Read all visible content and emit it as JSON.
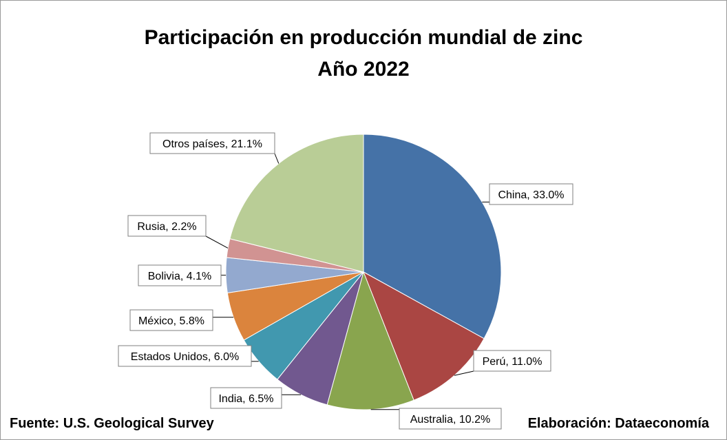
{
  "header": {
    "title_line1": "Participación en producción mundial de zinc",
    "title_line2": "Año 2022"
  },
  "footer": {
    "source": "Fuente: U.S. Geological Survey",
    "credit": "Elaboración: Dataeconomía"
  },
  "chart_data": {
    "type": "pie",
    "title": "Participación en producción mundial de zinc Año 2022",
    "unit": "%",
    "start": "12 o'clock",
    "direction": "clockwise",
    "slices": [
      {
        "label": "China",
        "value": 33.0,
        "text": "China, 33.0%",
        "color": "#4572A7"
      },
      {
        "label": "Perú",
        "value": 11.0,
        "text": "Perú, 11.0%",
        "color": "#AA4643"
      },
      {
        "label": "Australia",
        "value": 10.2,
        "text": "Australia, 10.2%",
        "color": "#89A54E"
      },
      {
        "label": "India",
        "value": 6.5,
        "text": "India, 6.5%",
        "color": "#71588F"
      },
      {
        "label": "Estados Unidos",
        "value": 6.0,
        "text": "Estados Unidos, 6.0%",
        "color": "#4198AF"
      },
      {
        "label": "México",
        "value": 5.8,
        "text": "México, 5.8%",
        "color": "#DB843D"
      },
      {
        "label": "Bolivia",
        "value": 4.1,
        "text": "Bolivia, 4.1%",
        "color": "#93A9CF"
      },
      {
        "label": "Rusia",
        "value": 2.2,
        "text": "Rusia, 2.2%",
        "color": "#D19392"
      },
      {
        "label": "Otros países",
        "value": 21.1,
        "text": "Otros países, 21.1%",
        "color": "#B9CD96"
      }
    ]
  }
}
